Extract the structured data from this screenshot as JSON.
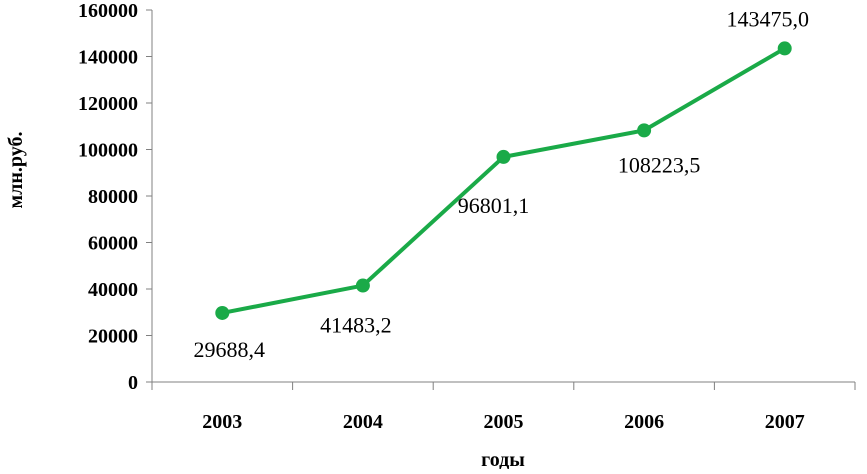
{
  "chart_data": {
    "type": "line",
    "categories": [
      "2003",
      "2004",
      "2005",
      "2006",
      "2007"
    ],
    "series": [
      {
        "values": [
          29688.4,
          41483.2,
          96801.1,
          108223.5,
          143475.0
        ],
        "labels": [
          "29688,4",
          "41483,2",
          "96801,1",
          "108223,5",
          "143475,0"
        ],
        "color": "#1aaa48"
      }
    ],
    "xlabel": "годы",
    "ylabel": "млн.руб.",
    "ylim": [
      0,
      160000
    ],
    "yticks": [
      0,
      20000,
      40000,
      60000,
      80000,
      100000,
      120000,
      140000,
      160000
    ],
    "grid": false,
    "legend": "none"
  }
}
